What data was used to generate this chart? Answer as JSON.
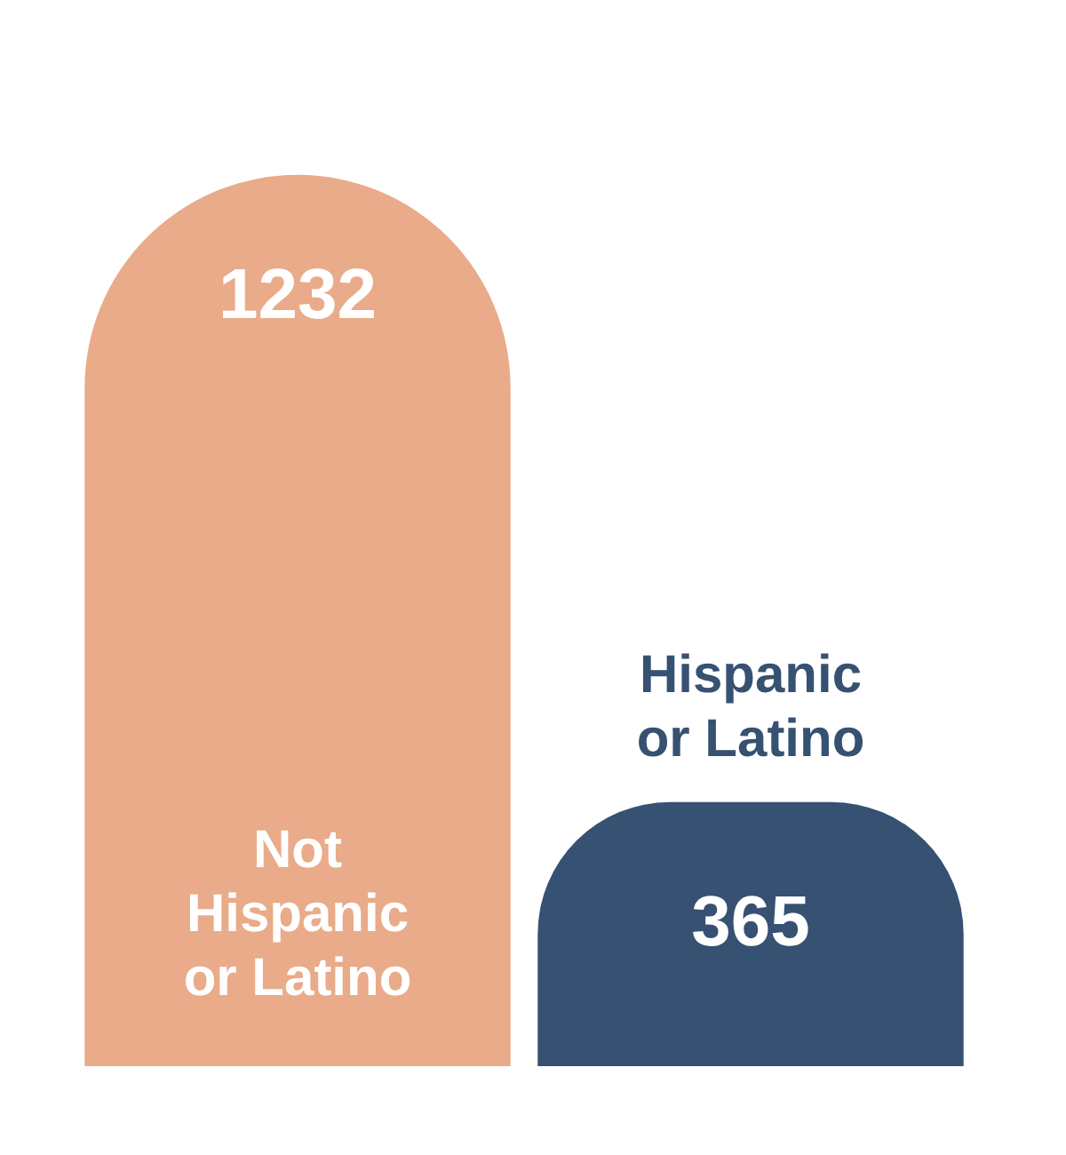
{
  "chart_data": {
    "type": "bar",
    "categories": [
      "Not Hispanic or Latino",
      "Hispanic or Latino"
    ],
    "values": [
      1232,
      365
    ],
    "colors": [
      "#e9ab89",
      "#365172"
    ],
    "data_labels": true,
    "legend": false
  }
}
